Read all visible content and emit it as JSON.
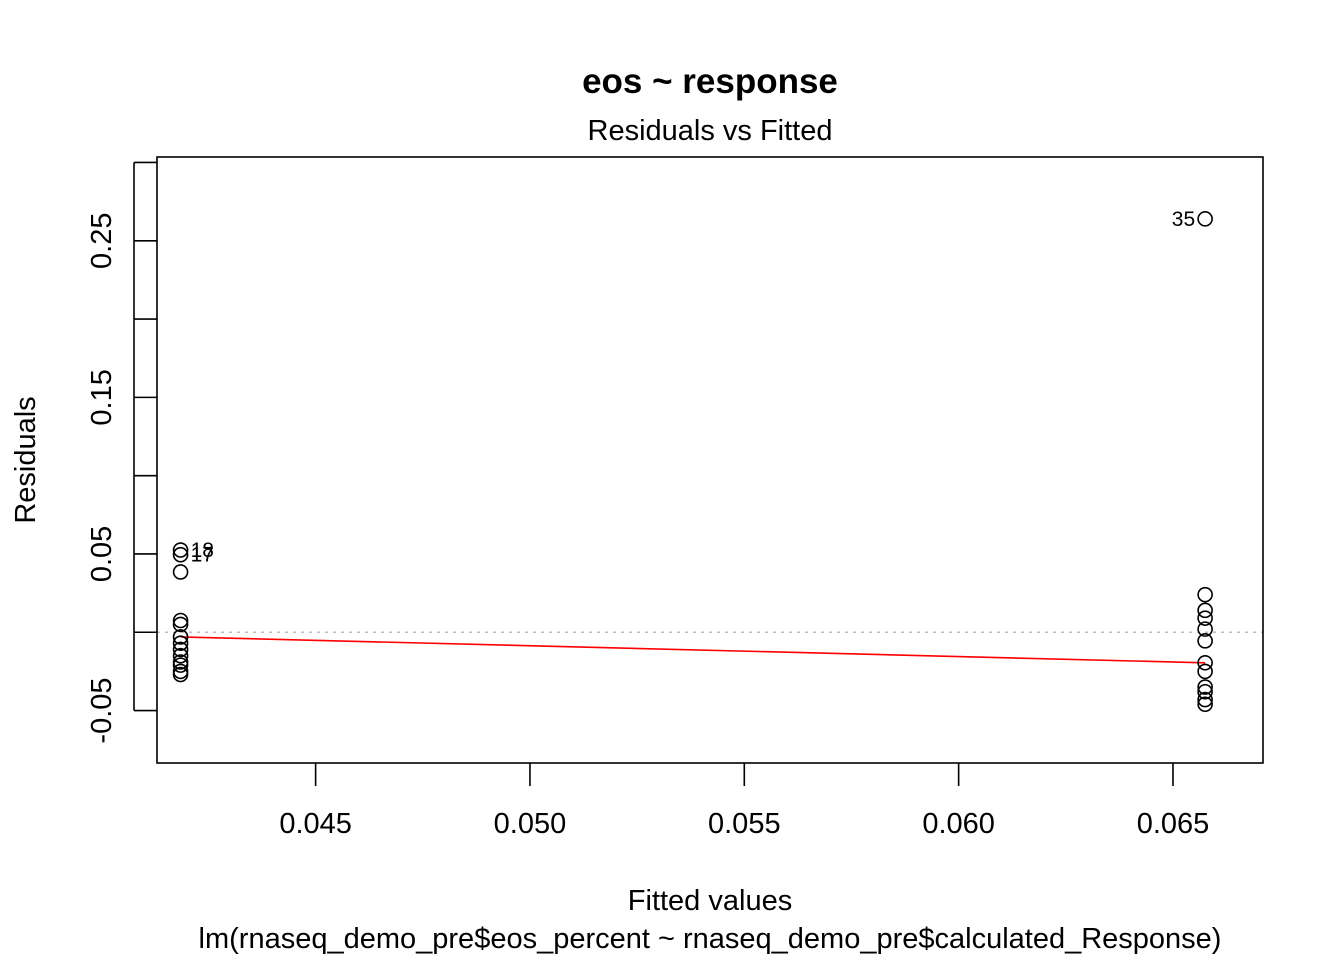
{
  "chart_data": {
    "type": "scatter",
    "title": "eos ~ response",
    "subtitle": "Residuals vs Fitted",
    "xlabel": "Fitted values",
    "xlabel2": "lm(rnaseq_demo_pre$eos_percent ~ rnaseq_demo_pre$calculated_Response)",
    "ylabel": "Residuals",
    "xlim": [
      0.0413,
      0.0671
    ],
    "ylim": [
      -0.0835,
      0.3035
    ],
    "x_ticks": [
      0.045,
      0.05,
      0.055,
      0.06,
      0.065
    ],
    "x_tick_labels": [
      "0.045",
      "0.050",
      "0.055",
      "0.060",
      "0.065"
    ],
    "y_ticks": [
      -0.05,
      0.0,
      0.05,
      0.1,
      0.15,
      0.2,
      0.25,
      0.3
    ],
    "y_tick_labels": [
      "-0.05",
      "",
      "0.05",
      "",
      "0.15",
      "",
      "0.25",
      ""
    ],
    "grid": false,
    "reference_line": {
      "y": 0,
      "style": "dotted",
      "color": "#bdbdbd"
    },
    "smooth_line": {
      "color": "#ff0000",
      "x": [
        0.04185,
        0.06575
      ],
      "y": [
        -0.003,
        -0.0195
      ]
    },
    "points": [
      {
        "x": 0.04185,
        "y": 0.0525,
        "label": "18"
      },
      {
        "x": 0.04185,
        "y": 0.0495,
        "label": "17"
      },
      {
        "x": 0.04185,
        "y": 0.0385
      },
      {
        "x": 0.04185,
        "y": 0.0075
      },
      {
        "x": 0.04185,
        "y": 0.005
      },
      {
        "x": 0.04185,
        "y": -0.003
      },
      {
        "x": 0.04185,
        "y": -0.007
      },
      {
        "x": 0.04185,
        "y": -0.011
      },
      {
        "x": 0.04185,
        "y": -0.015
      },
      {
        "x": 0.04185,
        "y": -0.019
      },
      {
        "x": 0.04185,
        "y": -0.021
      },
      {
        "x": 0.04185,
        "y": -0.025
      },
      {
        "x": 0.04185,
        "y": -0.027
      },
      {
        "x": 0.06575,
        "y": 0.264,
        "label": "35"
      },
      {
        "x": 0.06575,
        "y": 0.024
      },
      {
        "x": 0.06575,
        "y": 0.014
      },
      {
        "x": 0.06575,
        "y": 0.009
      },
      {
        "x": 0.06575,
        "y": 0.002
      },
      {
        "x": 0.06575,
        "y": -0.0055
      },
      {
        "x": 0.06575,
        "y": -0.0195
      },
      {
        "x": 0.06575,
        "y": -0.025
      },
      {
        "x": 0.06575,
        "y": -0.035
      },
      {
        "x": 0.06575,
        "y": -0.038
      },
      {
        "x": 0.06575,
        "y": -0.043
      },
      {
        "x": 0.06575,
        "y": -0.046
      }
    ]
  }
}
